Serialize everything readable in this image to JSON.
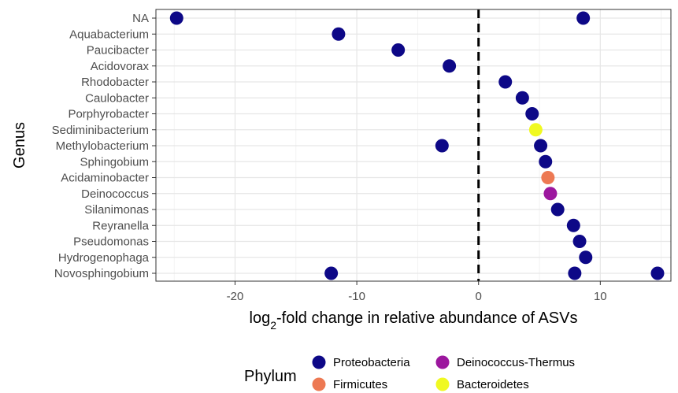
{
  "chart_data": {
    "type": "scatter",
    "xlabel": "log2-fold change in relative abundance of ASVs",
    "ylabel": "Genus",
    "xlim": [
      -26.5,
      15.8
    ],
    "x_ticks": [
      -20,
      -10,
      0,
      10
    ],
    "x_tick_labels": [
      "-20",
      "-10",
      "0",
      "10"
    ],
    "reference_line": {
      "x": 0,
      "style": "dashed"
    },
    "grid": true,
    "categories": [
      "NA",
      "Aquabacterium",
      "Paucibacter",
      "Acidovorax",
      "Rhodobacter",
      "Caulobacter",
      "Porphyrobacter",
      "Sediminibacterium",
      "Methylobacterium",
      "Sphingobium",
      "Acidaminobacter",
      "Deinococcus",
      "Silanimonas",
      "Reyranella",
      "Pseudomonas",
      "Hydrogenophaga",
      "Novosphingobium"
    ],
    "legend": {
      "title": "Phylum",
      "placement": "bottom",
      "entries": [
        {
          "name": "Proteobacteria",
          "color": "#0d0887"
        },
        {
          "name": "Deinococcus-Thermus",
          "color": "#9c179e"
        },
        {
          "name": "Firmicutes",
          "color": "#ed7953"
        },
        {
          "name": "Bacteroidetes",
          "color": "#f0f921"
        }
      ]
    },
    "series": [
      {
        "name": "Proteobacteria",
        "color": "#0d0887",
        "points": [
          {
            "genus": "NA",
            "x": -24.8
          },
          {
            "genus": "NA",
            "x": 8.6
          },
          {
            "genus": "Aquabacterium",
            "x": -11.5
          },
          {
            "genus": "Paucibacter",
            "x": -6.6
          },
          {
            "genus": "Acidovorax",
            "x": -2.4
          },
          {
            "genus": "Rhodobacter",
            "x": 2.2
          },
          {
            "genus": "Caulobacter",
            "x": 3.6
          },
          {
            "genus": "Porphyrobacter",
            "x": 4.4
          },
          {
            "genus": "Methylobacterium",
            "x": -3.0
          },
          {
            "genus": "Methylobacterium",
            "x": 5.1
          },
          {
            "genus": "Sphingobium",
            "x": 5.5
          },
          {
            "genus": "Silanimonas",
            "x": 6.5
          },
          {
            "genus": "Reyranella",
            "x": 7.8
          },
          {
            "genus": "Pseudomonas",
            "x": 8.3
          },
          {
            "genus": "Hydrogenophaga",
            "x": 8.8
          },
          {
            "genus": "Novosphingobium",
            "x": -12.1
          },
          {
            "genus": "Novosphingobium",
            "x": 7.9
          },
          {
            "genus": "Novosphingobium",
            "x": 14.7
          }
        ]
      },
      {
        "name": "Deinococcus-Thermus",
        "color": "#9c179e",
        "points": [
          {
            "genus": "Deinococcus",
            "x": 5.9
          }
        ]
      },
      {
        "name": "Firmicutes",
        "color": "#ed7953",
        "points": [
          {
            "genus": "Acidaminobacter",
            "x": 5.7
          }
        ]
      },
      {
        "name": "Bacteroidetes",
        "color": "#f0f921",
        "points": [
          {
            "genus": "Sediminibacterium",
            "x": 4.7
          }
        ]
      }
    ]
  }
}
